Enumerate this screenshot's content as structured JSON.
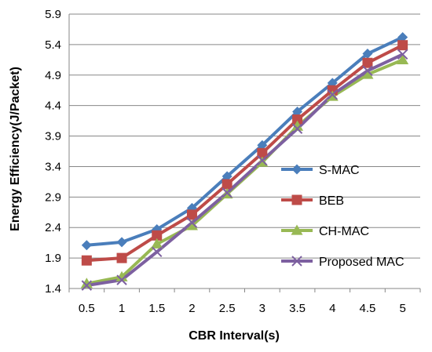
{
  "chart_data": {
    "type": "line",
    "xlabel": "CBR Interval(s)",
    "ylabel": "Energy Efficiency(J/Packet)",
    "x": [
      "0.5",
      "1",
      "1.5",
      "2",
      "2.5",
      "3",
      "3.5",
      "4",
      "4.5",
      "5"
    ],
    "ylim": [
      1.4,
      5.9
    ],
    "yticks": [
      "1.4",
      "1.9",
      "2.4",
      "2.9",
      "3.4",
      "3.9",
      "4.4",
      "4.9",
      "5.4",
      "5.9"
    ],
    "grid": true,
    "legend_position": "right",
    "series": [
      {
        "name": "S-MAC",
        "color": "#4a7ebb",
        "marker": "diamond",
        "values": [
          2.11,
          2.16,
          2.37,
          2.72,
          3.24,
          3.75,
          4.3,
          4.77,
          5.25,
          5.52
        ]
      },
      {
        "name": "BEB",
        "color": "#be4b48",
        "marker": "square",
        "values": [
          1.86,
          1.9,
          2.27,
          2.61,
          3.11,
          3.62,
          4.17,
          4.65,
          5.1,
          5.39
        ]
      },
      {
        "name": "CH-MAC",
        "color": "#98b954",
        "marker": "triangle",
        "values": [
          1.48,
          1.59,
          2.13,
          2.43,
          2.95,
          3.47,
          4.06,
          4.55,
          4.91,
          5.15
        ]
      },
      {
        "name": "Proposed MAC",
        "color": "#7d60a0",
        "marker": "x",
        "values": [
          1.45,
          1.54,
          2.0,
          2.48,
          2.97,
          3.5,
          4.02,
          4.58,
          4.97,
          5.24
        ]
      }
    ]
  }
}
